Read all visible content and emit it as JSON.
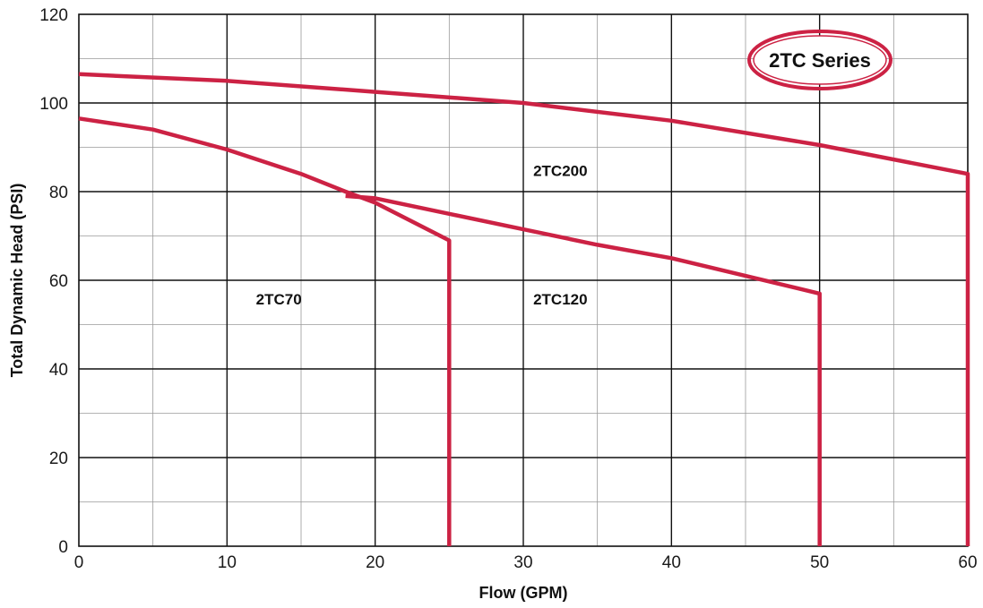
{
  "chart_data": {
    "type": "line",
    "title": "",
    "xlabel": "Flow (GPM)",
    "ylabel": "Total Dynamic Head (PSI)",
    "xlim": [
      0,
      60
    ],
    "ylim": [
      0,
      120
    ],
    "x_ticks": [
      0,
      10,
      20,
      30,
      40,
      50,
      60
    ],
    "y_ticks": [
      0,
      20,
      40,
      60,
      80,
      100,
      120
    ],
    "x_tick_labels": [
      "0",
      "10",
      "20",
      "30",
      "40",
      "50",
      "60"
    ],
    "y_tick_labels": [
      "0",
      "20",
      "40",
      "60",
      "80",
      "100",
      "120"
    ],
    "grid": true,
    "curve_color": "#cc2244",
    "series": [
      {
        "name": "2TC200",
        "points": [
          [
            0,
            106.5
          ],
          [
            10,
            105
          ],
          [
            20,
            102.5
          ],
          [
            30,
            100
          ],
          [
            40,
            96
          ],
          [
            50,
            90.5
          ],
          [
            60,
            84
          ],
          [
            60,
            0
          ]
        ]
      },
      {
        "name": "2TC120",
        "points": [
          [
            18,
            79
          ],
          [
            20,
            78.5
          ],
          [
            25,
            75
          ],
          [
            30,
            71.5
          ],
          [
            35,
            68
          ],
          [
            40,
            65
          ],
          [
            45,
            61
          ],
          [
            50,
            57
          ],
          [
            50,
            0
          ]
        ]
      },
      {
        "name": "2TC70",
        "points": [
          [
            0,
            96.5
          ],
          [
            5,
            94
          ],
          [
            10,
            89.5
          ],
          [
            15,
            84
          ],
          [
            18,
            80
          ],
          [
            20,
            77.5
          ],
          [
            25,
            69
          ],
          [
            25,
            0
          ]
        ]
      }
    ],
    "annotations": [
      {
        "text": "2TC200",
        "x": 32.5,
        "y": 83.5
      },
      {
        "text": "2TC120",
        "x": 32.5,
        "y": 54.5
      },
      {
        "text": "2TC70",
        "x": 13.5,
        "y": 54.5
      }
    ],
    "badge": "2TC Series"
  }
}
